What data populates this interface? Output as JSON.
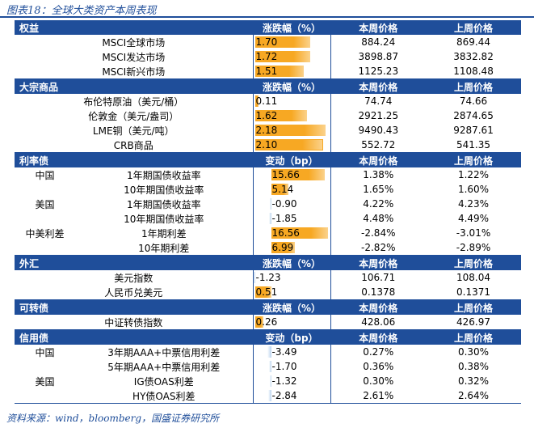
{
  "title": "图表18：全球大类资产本周表现",
  "footer": "资料来源：wind，bloomberg，国盛证券研究所",
  "sections": {
    "equity": {
      "header": [
        "权益",
        "涨跌幅（%）",
        "本周价格",
        "上周价格"
      ],
      "rows": [
        {
          "name": "MSCI全球市场",
          "change": "1.70",
          "cur": "884.24",
          "prev": "869.44"
        },
        {
          "name": "MSCI发达市场",
          "change": "1.72",
          "cur": "3898.87",
          "prev": "3832.82"
        },
        {
          "name": "MSCI新兴市场",
          "change": "1.51",
          "cur": "1125.23",
          "prev": "1108.48"
        }
      ]
    },
    "commodity": {
      "header": [
        "大宗商品",
        "涨跌幅（%）",
        "本周价格",
        "上周价格"
      ],
      "rows": [
        {
          "name": "布伦特原油（美元/桶）",
          "change": "0.11",
          "cur": "74.74",
          "prev": "74.66"
        },
        {
          "name": "伦敦金（美元/盎司）",
          "change": "1.62",
          "cur": "2921.25",
          "prev": "2874.65"
        },
        {
          "name": "LME铜（美元/吨）",
          "change": "2.18",
          "cur": "9490.43",
          "prev": "9287.61"
        },
        {
          "name": "CRB商品",
          "change": "2.10",
          "cur": "552.72",
          "prev": "541.35"
        }
      ]
    },
    "rates": {
      "header": [
        "利率债",
        "变动（bp）",
        "本周价格",
        "上周价格"
      ],
      "rows": [
        {
          "group": "中国",
          "name": "1年期国债收益率",
          "change": "15.66",
          "cur": "1.38%",
          "prev": "1.22%"
        },
        {
          "group": "",
          "name": "10年期国债收益率",
          "change": "5.14",
          "cur": "1.65%",
          "prev": "1.60%"
        },
        {
          "group": "美国",
          "name": "1年期国债收益率",
          "change": "-0.90",
          "cur": "4.22%",
          "prev": "4.23%"
        },
        {
          "group": "",
          "name": "10年期国债收益率",
          "change": "-1.85",
          "cur": "4.48%",
          "prev": "4.49%"
        },
        {
          "group": "中美利差",
          "name": "1年期利差",
          "change": "16.56",
          "cur": "-2.84%",
          "prev": "-3.01%"
        },
        {
          "group": "",
          "name": "10年期利差",
          "change": "6.99",
          "cur": "-2.82%",
          "prev": "-2.89%"
        }
      ]
    },
    "fx": {
      "header": [
        "外汇",
        "涨跌幅（%）",
        "本周价格",
        "上周价格"
      ],
      "rows": [
        {
          "name": "美元指数",
          "change": "-1.23",
          "cur": "106.71",
          "prev": "108.04"
        },
        {
          "name": "人民币兑美元",
          "change": "0.51",
          "cur": "0.1378",
          "prev": "0.1371"
        }
      ]
    },
    "convertible": {
      "header": [
        "可转债",
        "涨跌幅（%）",
        "本周价格",
        "上周价格"
      ],
      "rows": [
        {
          "name": "中证转债指数",
          "change": "0.26",
          "cur": "428.06",
          "prev": "426.97"
        }
      ]
    },
    "credit": {
      "header": [
        "信用债",
        "变动（bp）",
        "本周价格",
        "上周价格"
      ],
      "rows": [
        {
          "group": "中国",
          "name": "3年期AAA+中票信用利差",
          "change": "-3.49",
          "cur": "0.27%",
          "prev": "0.30%"
        },
        {
          "group": "",
          "name": "5年期AAA+中票信用利差",
          "change": "-1.70",
          "cur": "0.36%",
          "prev": "0.38%"
        },
        {
          "group": "美国",
          "name": "IG债OAS利差",
          "change": "-1.32",
          "cur": "0.30%",
          "prev": "0.32%"
        },
        {
          "group": "",
          "name": "HY债OAS利差",
          "change": "-2.84",
          "cur": "2.61%",
          "prev": "2.64%"
        }
      ]
    }
  },
  "colors": {
    "header_bg": "#1f4e9a",
    "positive_bar": "#f7a823",
    "negative_bar": "#b9d3ee"
  }
}
